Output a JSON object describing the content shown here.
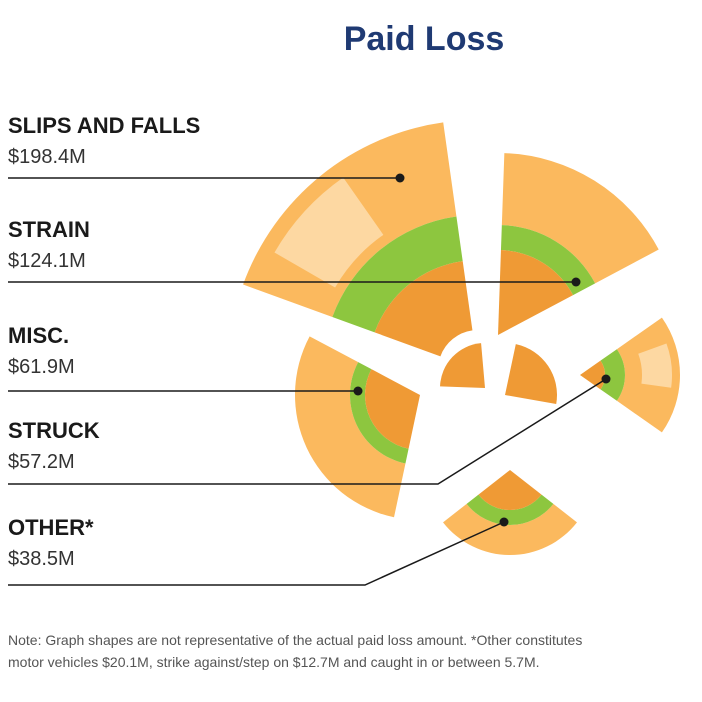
{
  "title": "Paid Loss",
  "items": [
    {
      "label": "SLIPS AND FALLS",
      "amount": "$198.4M"
    },
    {
      "label": "STRAIN",
      "amount": "$124.1M"
    },
    {
      "label": "MISC.",
      "amount": "$61.9M"
    },
    {
      "label": "STRUCK",
      "amount": "$57.2M"
    },
    {
      "label": "OTHER*",
      "amount": "$38.5M"
    }
  ],
  "note": [
    "Note: Graph shapes are not representative of the actual paid loss amount. *Other constitutes",
    "motor vehicles $20.1M, strike against/step on $12.7M and caught in or between 5.7M."
  ]
}
